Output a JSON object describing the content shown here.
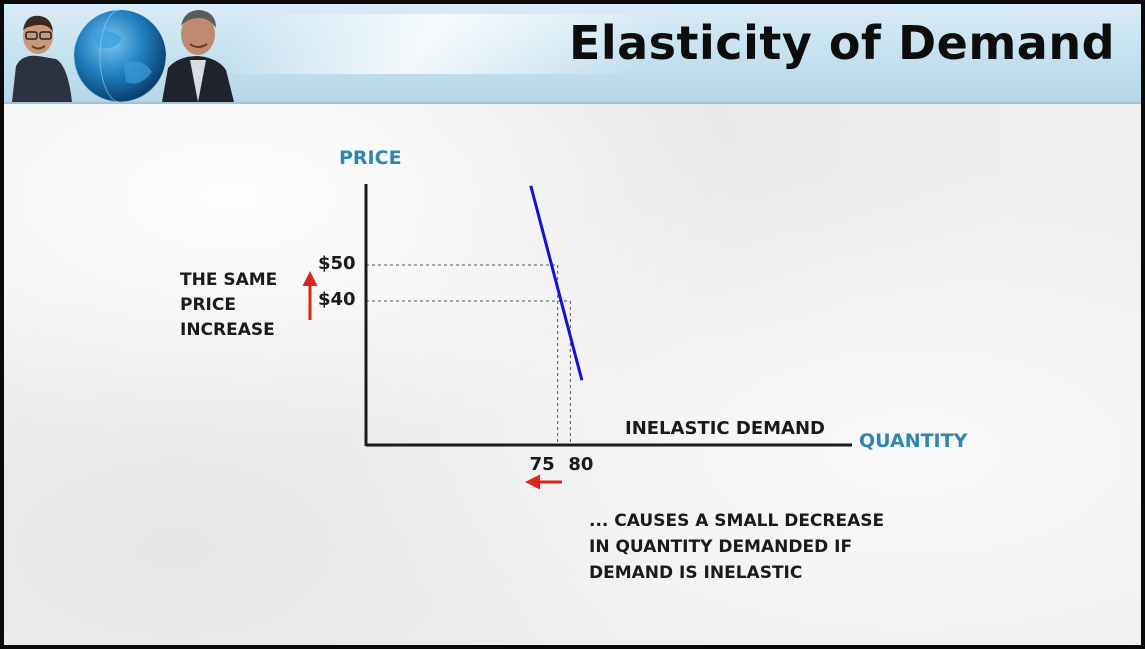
{
  "header": {
    "title": "Elasticity of Demand",
    "colors": {
      "band": "#c5e1ef",
      "globe": "#1f7fc0"
    }
  },
  "chart_data": {
    "type": "line",
    "title": "",
    "xlabel": "QUANTITY",
    "ylabel": "PRICE",
    "series": [
      {
        "name": "INELASTIC DEMAND",
        "color": "#1212d6",
        "x": [
          64.5,
          84.5
        ],
        "y": [
          72,
          18
        ]
      }
    ],
    "xlim": [
      0,
      132
    ],
    "ylim": [
      0,
      76
    ],
    "y_ticks": [
      {
        "value": 50,
        "label": "$50"
      },
      {
        "value": 40,
        "label": "$40"
      }
    ],
    "x_ticks": [
      {
        "value": 75,
        "label": "75"
      },
      {
        "value": 80,
        "label": "80"
      }
    ],
    "guides": [
      {
        "x": 75,
        "y": 50
      },
      {
        "x": 80,
        "y": 40
      }
    ],
    "grid": false
  },
  "annotations": {
    "price_note": [
      "THE SAME",
      "PRICE",
      "INCREASE"
    ],
    "quantity_note": [
      "... CAUSES A SMALL DECREASE",
      "IN QUANTITY DEMANDED IF",
      "DEMAND IS INELASTIC"
    ],
    "arrow_color": "#e0241b"
  }
}
